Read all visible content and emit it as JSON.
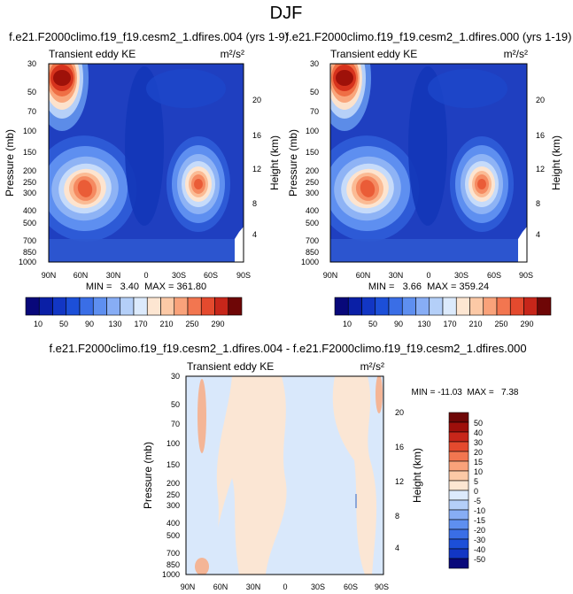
{
  "figure": {
    "title": "DJF"
  },
  "colors": {
    "panel_bg": "#1a3bb0",
    "bar_diverging": [
      "#08087a",
      "#0a1fa6",
      "#1236c4",
      "#1c4fd8",
      "#3a6ee6",
      "#5e8ff0",
      "#87adf5",
      "#b4cff8",
      "#dceafc",
      "#fde6d2",
      "#fcc9a6",
      "#f9a27a",
      "#f27650",
      "#e44a2e",
      "#c7261a",
      "#9e0f0b",
      "#6e0606"
    ]
  },
  "chart_data": [
    {
      "type": "heatmap",
      "title": "f.e21.F2000climo.f19_f19.cesm2_1.dfires.004 (yrs 1-9)",
      "left_label": "Transient eddy KE",
      "units_label": "m²/s²",
      "ylabel": "Pressure (mb)",
      "ylabel_right": "Height (km)",
      "x_ticks": [
        "90N",
        "60N",
        "30N",
        "0",
        "30S",
        "60S",
        "90S"
      ],
      "y_ticks": [
        "30",
        "50",
        "70",
        "100",
        "150",
        "200",
        "250",
        "300",
        "400",
        "500",
        "700",
        "850",
        "1000"
      ],
      "y_ticks_right": [
        "20",
        "16",
        "12",
        "8",
        "4"
      ],
      "stats": "MIN =   3.40  MAX = 361.80",
      "contour_levels": [
        10,
        30,
        50,
        70,
        90,
        110,
        130,
        150,
        170,
        190,
        210,
        230,
        250,
        270,
        290
      ],
      "colorbar_labels": [
        "10",
        "50",
        "90",
        "130",
        "170",
        "210",
        "250",
        "290"
      ],
      "min": 3.4,
      "max": 361.8
    },
    {
      "type": "heatmap",
      "title": "f.e21.F2000climo.f19_f19.cesm2_1.dfires.000 (yrs 1-19)",
      "left_label": "Transient eddy KE",
      "units_label": "m²/s²",
      "ylabel": "Pressure (mb)",
      "ylabel_right": "Height (km)",
      "x_ticks": [
        "90N",
        "60N",
        "30N",
        "0",
        "30S",
        "60S",
        "90S"
      ],
      "y_ticks": [
        "30",
        "50",
        "70",
        "100",
        "150",
        "200",
        "250",
        "300",
        "400",
        "500",
        "700",
        "850",
        "1000"
      ],
      "y_ticks_right": [
        "20",
        "16",
        "12",
        "8",
        "4"
      ],
      "stats": "MIN =   3.66  MAX = 359.24",
      "contour_levels": [
        10,
        30,
        50,
        70,
        90,
        110,
        130,
        150,
        170,
        190,
        210,
        230,
        250,
        270,
        290
      ],
      "colorbar_labels": [
        "10",
        "50",
        "90",
        "130",
        "170",
        "210",
        "250",
        "290"
      ],
      "min": 3.66,
      "max": 359.24
    },
    {
      "type": "heatmap",
      "title": "f.e21.F2000climo.f19_f19.cesm2_1.dfires.004 - f.e21.F2000climo.f19_f19.cesm2_1.dfires.000",
      "left_label": "Transient eddy KE",
      "units_label": "m²/s²",
      "ylabel": "Pressure (mb)",
      "ylabel_right": "Height (km)",
      "x_ticks": [
        "90N",
        "60N",
        "30N",
        "0",
        "30S",
        "60S",
        "90S"
      ],
      "y_ticks": [
        "30",
        "50",
        "70",
        "100",
        "150",
        "200",
        "250",
        "300",
        "400",
        "500",
        "700",
        "850",
        "1000"
      ],
      "y_ticks_right": [
        "20",
        "16",
        "12",
        "8",
        "4"
      ],
      "stats": "MIN = -11.03  MAX =   7.38",
      "colorbar_labels": [
        "50",
        "40",
        "30",
        "20",
        "15",
        "10",
        "5",
        "0",
        "-5",
        "-10",
        "-15",
        "-20",
        "-30",
        "-40",
        "-50"
      ],
      "min": -11.03,
      "max": 7.38
    }
  ]
}
